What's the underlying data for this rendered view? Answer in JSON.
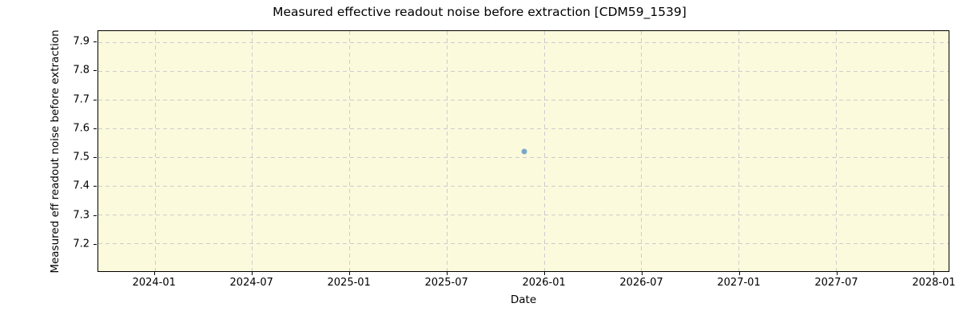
{
  "chart_data": {
    "type": "scatter",
    "title": "Measured effective readout noise before extraction [CDM59_1539]",
    "xlabel": "Date",
    "ylabel": "Measured eff readout noise before extraction",
    "grid": true,
    "legend": false,
    "x_axis": {
      "min": 2023.71,
      "max": 2028.08,
      "ticks": [
        {
          "value": 2024.0,
          "label": "2024-01"
        },
        {
          "value": 2024.5,
          "label": "2024-07"
        },
        {
          "value": 2025.0,
          "label": "2025-01"
        },
        {
          "value": 2025.5,
          "label": "2025-07"
        },
        {
          "value": 2026.0,
          "label": "2026-01"
        },
        {
          "value": 2026.5,
          "label": "2026-07"
        },
        {
          "value": 2027.0,
          "label": "2027-01"
        },
        {
          "value": 2027.5,
          "label": "2027-07"
        },
        {
          "value": 2028.0,
          "label": "2028-01"
        }
      ]
    },
    "y_axis": {
      "min": 7.103,
      "max": 7.939,
      "ticks": [
        {
          "value": 7.2,
          "label": "7.2"
        },
        {
          "value": 7.3,
          "label": "7.3"
        },
        {
          "value": 7.4,
          "label": "7.4"
        },
        {
          "value": 7.5,
          "label": "7.5"
        },
        {
          "value": 7.6,
          "label": "7.6"
        },
        {
          "value": 7.7,
          "label": "7.7"
        },
        {
          "value": 7.8,
          "label": "7.8"
        },
        {
          "value": 7.9,
          "label": "7.9"
        }
      ]
    },
    "series": [
      {
        "name": "measured-effective-readout-noise",
        "marker": "circle",
        "color": "#78aac8",
        "points": [
          {
            "x": 2025.9,
            "date": "2025-11",
            "y": 7.52
          }
        ]
      }
    ],
    "colors": {
      "plot_background": "#fcfadd",
      "grid": "#cccccc",
      "spine": "#000000",
      "text": "#000000",
      "marker": "#78aac8"
    }
  }
}
